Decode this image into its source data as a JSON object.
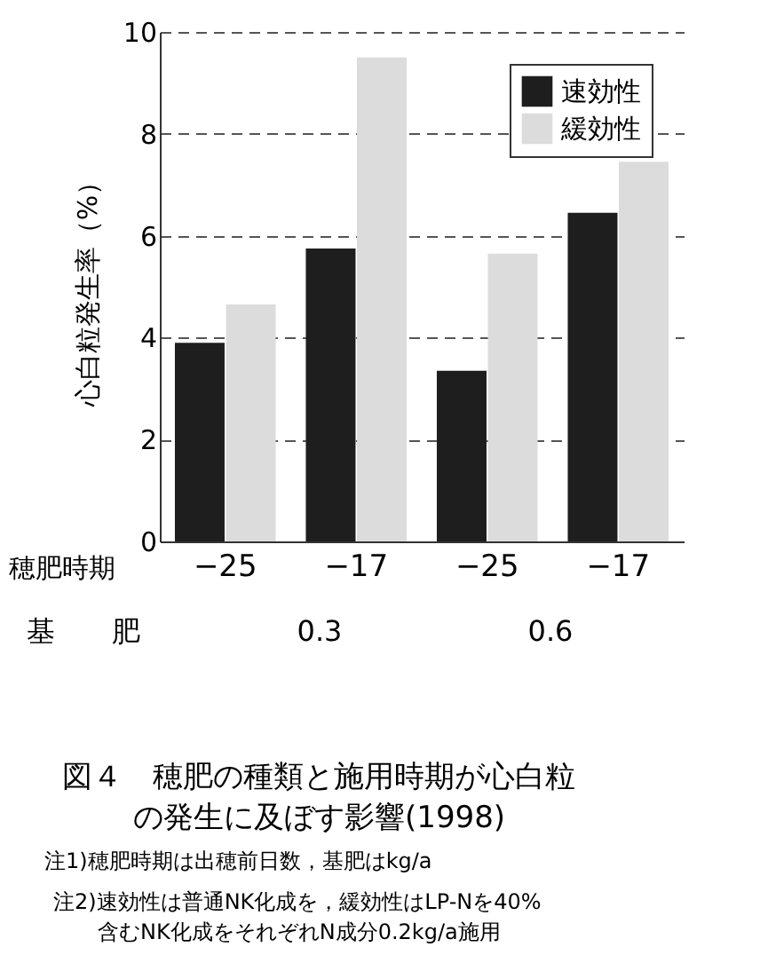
{
  "chart_data": {
    "type": "bar",
    "categories": [
      "−25",
      "−17",
      "−25",
      "−17"
    ],
    "series": [
      {
        "name": "速効性",
        "color": "#1e1e1e",
        "values": [
          3.9,
          5.75,
          3.35,
          6.45
        ]
      },
      {
        "name": "緩効性",
        "color": "#dcdcdc",
        "values": [
          4.65,
          9.5,
          5.65,
          7.45
        ]
      }
    ],
    "ylabel": "心白粒発生率（%）",
    "xlabel": "穂肥時期",
    "ylim": [
      0,
      10
    ],
    "yticks": [
      0,
      2,
      4,
      6,
      8,
      10
    ],
    "grid": "y",
    "legend": "top right",
    "annotations": [
      "基　　肥",
      "0.3",
      "0.6",
      "図４　穂肥の種類と施用時期が心白粒",
      "の発生に及ぼす影響(1998)",
      "注1)穂肥時期は出穂前日数，基肥はkg/a",
      "注2)速効性は普通NK化成を，緩効性はLP-Nを40%",
      "含むNK化成をそれぞれN成分0.2kg/a施用"
    ]
  }
}
